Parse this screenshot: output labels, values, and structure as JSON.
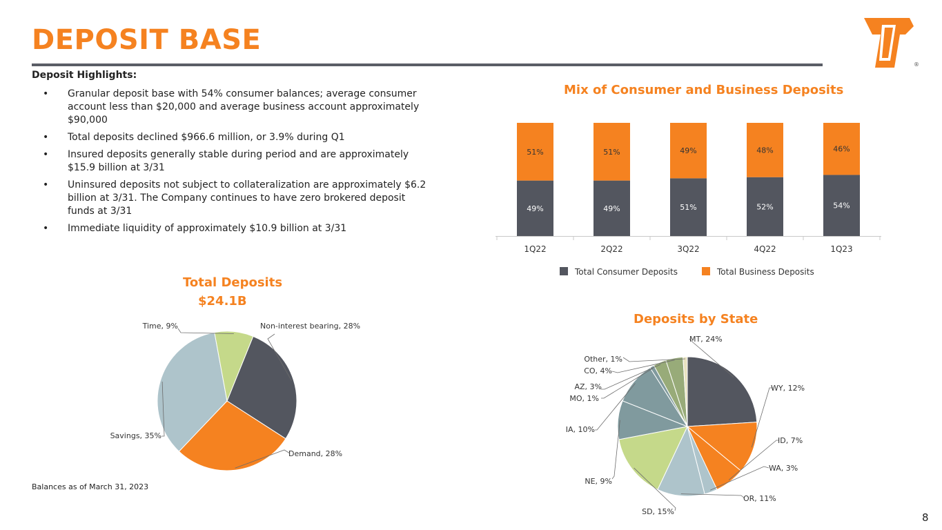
{
  "title": "DEPOSIT BASE",
  "logo": {
    "icon": "company-logo-icon",
    "registered": "®"
  },
  "highlights": {
    "heading": "Deposit Highlights:",
    "bullet": "•",
    "items": [
      "Granular deposit base with 54% consumer balances; average consumer account less than $20,000 and average business account approximately $90,000",
      "Total deposits declined $966.6 million, or 3.9% during Q1",
      "Insured deposits generally stable during period and are approximately $15.9 billion at 3/31",
      "Uninsured deposits not subject to collateralization are approximately $6.2 billion at 3/31. The Company continues to have zero brokered deposit funds at 3/31",
      "Immediate liquidity of approximately $10.9 billion at 3/31"
    ]
  },
  "colors": {
    "orange": "#F58220",
    "dark_gray": "#53565F",
    "light_blue": "#AEC4CB",
    "light_green": "#C5D98A",
    "teal": "#809A9E",
    "olive": "#98AB79",
    "cream": "#E8E2C0"
  },
  "chart_data": [
    {
      "id": "mix",
      "type": "bar",
      "stacked": true,
      "title": "Mix of Consumer and Business Deposits",
      "categories": [
        "1Q22",
        "2Q22",
        "3Q22",
        "4Q22",
        "1Q23"
      ],
      "series": [
        {
          "name": "Total Consumer Deposits",
          "values": [
            49,
            49,
            51,
            52,
            54
          ],
          "labels": [
            "49%",
            "49%",
            "51%",
            "52%",
            "54%"
          ],
          "color": "#53565F"
        },
        {
          "name": "Total Business Deposits",
          "values": [
            51,
            51,
            49,
            48,
            46
          ],
          "labels": [
            "51%",
            "51%",
            "49%",
            "48%",
            "46%"
          ],
          "color": "#F58220"
        }
      ],
      "ylim": [
        0,
        100
      ],
      "legend": "bottom"
    },
    {
      "id": "total",
      "type": "pie",
      "title": "Total Deposits",
      "subtitle": "$24.1B",
      "slices": [
        {
          "name": "Non-interest bearing",
          "value": 28,
          "label": "Non-interest bearing, 28%",
          "color": "#53565F"
        },
        {
          "name": "Demand",
          "value": 28,
          "label": "Demand, 28%",
          "color": "#F58220"
        },
        {
          "name": "Savings",
          "value": 35,
          "label": "Savings, 35%",
          "color": "#AEC4CB"
        },
        {
          "name": "Time",
          "value": 9,
          "label": "Time, 9%",
          "color": "#C5D98A"
        }
      ]
    },
    {
      "id": "state",
      "type": "pie",
      "title": "Deposits by State",
      "slices": [
        {
          "name": "MT",
          "value": 24,
          "label": "MT, 24%",
          "color": "#53565F"
        },
        {
          "name": "WY",
          "value": 12,
          "label": "WY, 12%",
          "color": "#F58220"
        },
        {
          "name": "ID",
          "value": 7,
          "label": "ID, 7%",
          "color": "#F58220"
        },
        {
          "name": "WA",
          "value": 3,
          "label": "WA, 3%",
          "color": "#AEC4CB"
        },
        {
          "name": "OR",
          "value": 11,
          "label": "OR, 11%",
          "color": "#AEC4CB"
        },
        {
          "name": "SD",
          "value": 15,
          "label": "SD, 15%",
          "color": "#C5D98A"
        },
        {
          "name": "NE",
          "value": 9,
          "label": "NE, 9%",
          "color": "#809A9E"
        },
        {
          "name": "IA",
          "value": 10,
          "label": "IA, 10%",
          "color": "#809A9E"
        },
        {
          "name": "MO",
          "value": 1,
          "label": "MO, 1%",
          "color": "#809A9E"
        },
        {
          "name": "AZ",
          "value": 3,
          "label": "AZ, 3%",
          "color": "#98AB79"
        },
        {
          "name": "CO",
          "value": 4,
          "label": "CO, 4%",
          "color": "#98AB79"
        },
        {
          "name": "Other",
          "value": 1,
          "label": "Other, 1%",
          "color": "#E8E2C0"
        }
      ]
    }
  ],
  "footnote": "Balances as of March 31, 2023",
  "page_number": "8"
}
